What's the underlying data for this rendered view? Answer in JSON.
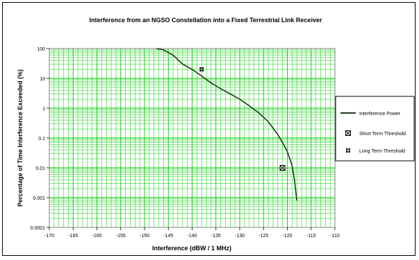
{
  "chart_data": {
    "type": "line",
    "title": "Interference from an NGSO Constellation into a Fixed Terrestrial Link Receiver",
    "xlabel": "Interference (dBW / 1 MHz)",
    "ylabel": "Percentage of Time Interference Exceeded (%)",
    "xlim": [
      -170,
      -110
    ],
    "ylim": [
      0.0001,
      100
    ],
    "y_scale": "log",
    "grid": true,
    "legend_position": "right",
    "x_ticks": [
      "-170",
      "-165",
      "-160",
      "-155",
      "-150",
      "-145",
      "-140",
      "-135",
      "-130",
      "-125",
      "-120",
      "-115",
      "-110"
    ],
    "y_ticks": [
      "0.0001",
      "0.001",
      "0.01",
      "0.1",
      "1",
      "10",
      "100"
    ],
    "colors": {
      "grid": "#00cc00",
      "line": "#1a3a1a",
      "plot_bg": "#ffffff"
    },
    "series": [
      {
        "name": "Interference Power",
        "kind": "line",
        "x": [
          -147.5,
          -146,
          -144,
          -142,
          -140,
          -138,
          -136,
          -134,
          -132,
          -130,
          -128,
          -126,
          -124,
          -122,
          -121,
          -120,
          -119,
          -118.5,
          -118.2,
          -118
        ],
        "y": [
          100,
          90,
          60,
          30,
          20,
          12,
          7,
          4.5,
          3,
          2,
          1.2,
          0.7,
          0.35,
          0.13,
          0.07,
          0.035,
          0.012,
          0.004,
          0.0015,
          0.0008
        ]
      },
      {
        "name": "Short Term Threshold",
        "kind": "marker",
        "marker": "x-square",
        "x": [
          -121
        ],
        "y": [
          0.01
        ]
      },
      {
        "name": "Long Term Threshold",
        "kind": "marker",
        "marker": "square-dots",
        "x": [
          -138
        ],
        "y": [
          20
        ]
      }
    ]
  }
}
